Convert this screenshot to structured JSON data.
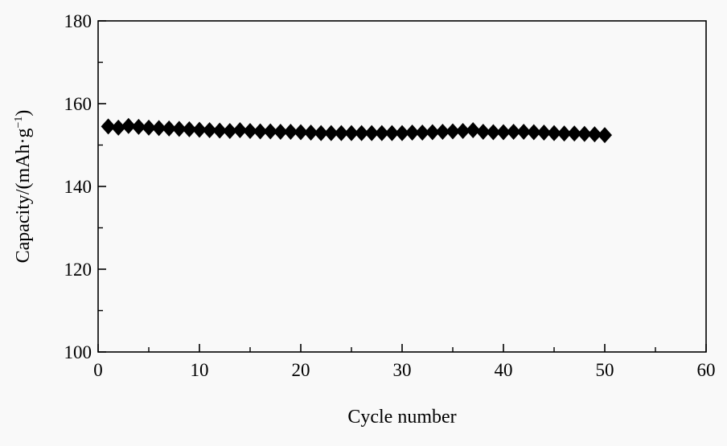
{
  "chart_data": {
    "type": "scatter",
    "xlabel": "Cycle number",
    "ylabel_main": "Capacity/(mAh·g",
    "ylabel_sup": "−1",
    "ylabel_close": ")",
    "xlim": [
      0,
      60
    ],
    "ylim": [
      100,
      180
    ],
    "x_ticks": [
      0,
      10,
      20,
      30,
      40,
      50,
      60
    ],
    "y_ticks": [
      100,
      120,
      140,
      160,
      180
    ],
    "x_minor_ticks": [
      5,
      15,
      25,
      35,
      45,
      55
    ],
    "y_minor_ticks": [
      110,
      130,
      150,
      170
    ],
    "grid": false,
    "marker": "diamond",
    "marker_color": "#000000",
    "series": [
      {
        "x": [
          1,
          2,
          3,
          4,
          5,
          6,
          7,
          8,
          9,
          10,
          11,
          12,
          13,
          14,
          15,
          16,
          17,
          18,
          19,
          20,
          21,
          22,
          23,
          24,
          25,
          26,
          27,
          28,
          29,
          30,
          31,
          32,
          33,
          34,
          35,
          36,
          37,
          38,
          39,
          40,
          41,
          42,
          43,
          44,
          45,
          46,
          47,
          48,
          49,
          50
        ],
        "values": [
          154.5,
          154.2,
          154.6,
          154.4,
          154.2,
          154.1,
          154.0,
          153.9,
          153.8,
          153.7,
          153.6,
          153.5,
          153.4,
          153.6,
          153.4,
          153.3,
          153.3,
          153.2,
          153.2,
          153.1,
          153.0,
          152.9,
          152.9,
          152.9,
          152.9,
          152.9,
          152.9,
          152.9,
          152.9,
          152.9,
          153.0,
          153.0,
          153.1,
          153.2,
          153.3,
          153.4,
          153.6,
          153.2,
          153.1,
          153.1,
          153.2,
          153.2,
          153.1,
          153.0,
          152.9,
          152.8,
          152.8,
          152.7,
          152.6,
          152.4
        ]
      }
    ]
  }
}
